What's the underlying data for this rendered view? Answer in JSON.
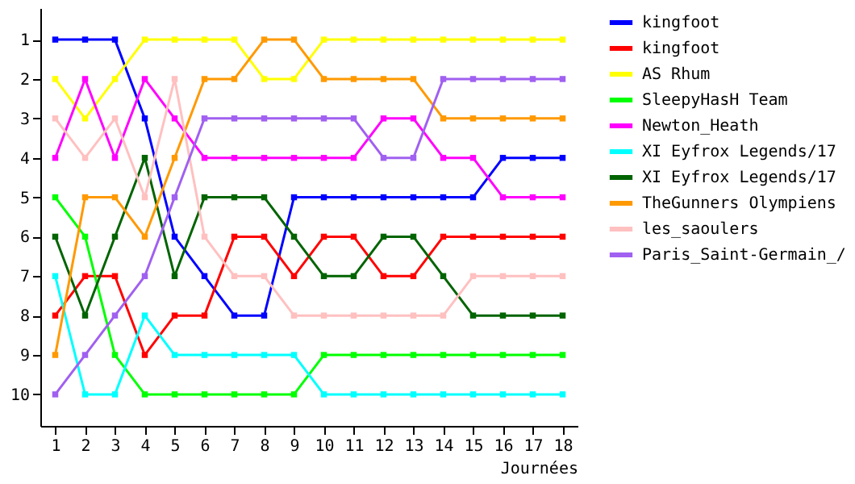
{
  "chart_data": {
    "type": "line",
    "xlabel": "Journées",
    "x": [
      1,
      2,
      3,
      4,
      5,
      6,
      7,
      8,
      9,
      10,
      11,
      12,
      13,
      14,
      15,
      16,
      17,
      18
    ],
    "xlim": [
      0.5,
      18.5
    ],
    "xticks": [
      1,
      2,
      3,
      4,
      5,
      6,
      7,
      8,
      9,
      10,
      11,
      12,
      13,
      14,
      15,
      16,
      17,
      18
    ],
    "ylim": [
      10.8,
      0.2
    ],
    "yticks": [
      1,
      2,
      3,
      4,
      5,
      6,
      7,
      8,
      9,
      10
    ],
    "grid": false,
    "legend": "right",
    "marker": "square",
    "line_style": "solid",
    "series": [
      {
        "name": "kingfoot",
        "color": "#0000ff",
        "values": [
          1,
          1,
          1,
          3,
          6,
          7,
          8,
          8,
          5,
          5,
          5,
          5,
          5,
          5,
          5,
          4,
          4,
          4
        ]
      },
      {
        "name": "kingfoot",
        "color": "#ff0000",
        "values": [
          8,
          7,
          7,
          9,
          8,
          8,
          6,
          6,
          7,
          6,
          6,
          7,
          7,
          6,
          6,
          6,
          6,
          6
        ]
      },
      {
        "name": "AS Rhum",
        "color": "#ffff00",
        "values": [
          2,
          3,
          2,
          1,
          1,
          1,
          1,
          2,
          2,
          1,
          1,
          1,
          1,
          1,
          1,
          1,
          1,
          1
        ]
      },
      {
        "name": "SleepyHasH Team",
        "color": "#00ff00",
        "values": [
          5,
          6,
          9,
          10,
          10,
          10,
          10,
          10,
          10,
          9,
          9,
          9,
          9,
          9,
          9,
          9,
          9,
          9
        ]
      },
      {
        "name": "Newton_Heath",
        "color": "#ff00ff",
        "values": [
          4,
          2,
          4,
          2,
          3,
          4,
          4,
          4,
          4,
          4,
          4,
          3,
          3,
          4,
          4,
          5,
          5,
          5
        ]
      },
      {
        "name": "XI Eyfrox Legends/17",
        "color": "#00ffff",
        "values": [
          7,
          10,
          10,
          8,
          9,
          9,
          9,
          9,
          9,
          10,
          10,
          10,
          10,
          10,
          10,
          10,
          10,
          10
        ]
      },
      {
        "name": "XI Eyfrox Legends/17",
        "color": "#006400",
        "values": [
          6,
          8,
          6,
          4,
          7,
          5,
          5,
          5,
          6,
          7,
          7,
          6,
          6,
          7,
          8,
          8,
          8,
          8
        ]
      },
      {
        "name": "TheGunners Olympiens",
        "color": "#ff9900",
        "values": [
          9,
          5,
          5,
          6,
          4,
          2,
          2,
          1,
          1,
          2,
          2,
          2,
          2,
          3,
          3,
          3,
          3,
          3
        ]
      },
      {
        "name": "les_saoulers",
        "color": "#ffc0c0",
        "values": [
          3,
          4,
          3,
          5,
          2,
          6,
          7,
          7,
          8,
          8,
          8,
          8,
          8,
          8,
          7,
          7,
          7,
          7
        ]
      },
      {
        "name": "Paris_Saint-Germain_/",
        "color": "#a060f0",
        "values": [
          10,
          9,
          8,
          7,
          5,
          3,
          3,
          3,
          3,
          3,
          3,
          4,
          4,
          2,
          2,
          2,
          2,
          2
        ]
      }
    ]
  }
}
